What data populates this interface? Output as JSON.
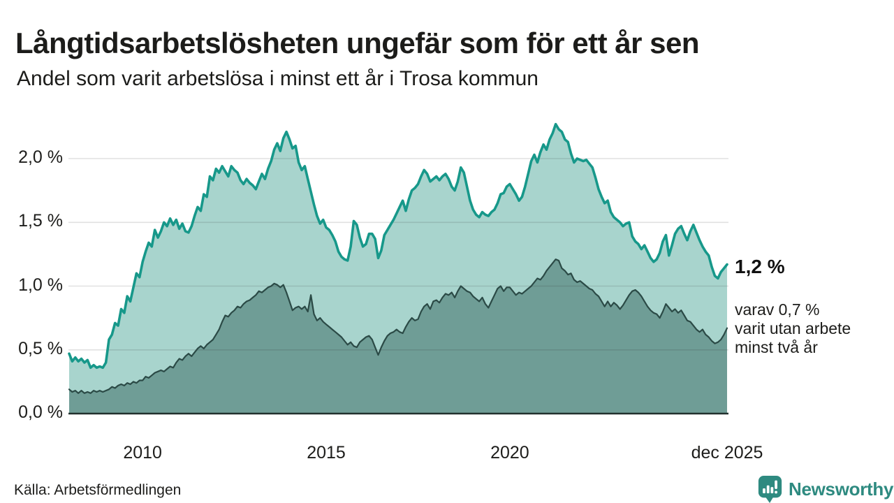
{
  "header": {
    "title": "Långtidsarbetslösheten ungefär som för ett år sen",
    "subtitle": "Andel som varit arbetslösa i minst ett år i Trosa kommun"
  },
  "chart_data": {
    "type": "area",
    "title": "Långtidsarbetslösheten ungefär som för ett år sen",
    "subtitle": "Andel som varit arbetslösa i minst ett år i Trosa kommun",
    "frequency": "monthly",
    "x_domain": [
      2008.0,
      2025.917
    ],
    "x_axis": {
      "ticks": [
        {
          "label": "2010",
          "t": 2010.0
        },
        {
          "label": "2015",
          "t": 2015.0
        },
        {
          "label": "2020",
          "t": 2020.0
        },
        {
          "label": "dec 2025",
          "t": 2025.917
        }
      ]
    },
    "y_axis": {
      "unit": "%",
      "ylim": [
        0,
        2.3
      ],
      "ticks": [
        {
          "label": "0,0 %",
          "value": 0
        },
        {
          "label": "0,5 %",
          "value": 0.5
        },
        {
          "label": "1,0 %",
          "value": 1.0
        },
        {
          "label": "1,5 %",
          "value": 1.5
        },
        {
          "label": "2,0 %",
          "value": 2.0
        }
      ],
      "grid": true
    },
    "series": [
      {
        "name": "Andel arbetslösa minst ett år",
        "color": "#17988a",
        "fill": "#a8d4cd",
        "values": [
          0.47,
          0.41,
          0.44,
          0.41,
          0.43,
          0.4,
          0.42,
          0.36,
          0.38,
          0.36,
          0.37,
          0.36,
          0.4,
          0.58,
          0.62,
          0.71,
          0.69,
          0.82,
          0.79,
          0.92,
          0.88,
          0.99,
          1.1,
          1.07,
          1.19,
          1.27,
          1.34,
          1.31,
          1.44,
          1.38,
          1.43,
          1.5,
          1.47,
          1.53,
          1.48,
          1.52,
          1.45,
          1.49,
          1.43,
          1.42,
          1.47,
          1.55,
          1.62,
          1.59,
          1.72,
          1.7,
          1.86,
          1.83,
          1.92,
          1.89,
          1.94,
          1.9,
          1.86,
          1.94,
          1.91,
          1.89,
          1.83,
          1.8,
          1.84,
          1.81,
          1.79,
          1.76,
          1.82,
          1.88,
          1.84,
          1.92,
          1.98,
          2.07,
          2.12,
          2.06,
          2.16,
          2.21,
          2.15,
          2.08,
          2.1,
          1.97,
          1.91,
          1.94,
          1.84,
          1.74,
          1.64,
          1.55,
          1.49,
          1.52,
          1.46,
          1.44,
          1.4,
          1.35,
          1.27,
          1.23,
          1.21,
          1.2,
          1.31,
          1.51,
          1.48,
          1.38,
          1.31,
          1.33,
          1.41,
          1.41,
          1.37,
          1.22,
          1.28,
          1.4,
          1.44,
          1.48,
          1.52,
          1.57,
          1.62,
          1.67,
          1.59,
          1.68,
          1.75,
          1.77,
          1.8,
          1.86,
          1.91,
          1.88,
          1.82,
          1.84,
          1.86,
          1.83,
          1.86,
          1.88,
          1.84,
          1.78,
          1.75,
          1.82,
          1.93,
          1.89,
          1.78,
          1.67,
          1.6,
          1.56,
          1.54,
          1.58,
          1.56,
          1.55,
          1.58,
          1.6,
          1.65,
          1.72,
          1.73,
          1.78,
          1.8,
          1.76,
          1.72,
          1.67,
          1.7,
          1.78,
          1.88,
          1.98,
          2.03,
          1.97,
          2.05,
          2.11,
          2.07,
          2.15,
          2.2,
          2.27,
          2.23,
          2.21,
          2.15,
          2.13,
          2.04,
          1.97,
          2.0,
          1.99,
          1.98,
          1.99,
          1.96,
          1.93,
          1.85,
          1.76,
          1.7,
          1.65,
          1.67,
          1.58,
          1.54,
          1.52,
          1.5,
          1.47,
          1.49,
          1.5,
          1.39,
          1.35,
          1.33,
          1.29,
          1.32,
          1.27,
          1.22,
          1.19,
          1.21,
          1.26,
          1.35,
          1.4,
          1.24,
          1.32,
          1.41,
          1.45,
          1.47,
          1.41,
          1.36,
          1.43,
          1.48,
          1.42,
          1.36,
          1.31,
          1.27,
          1.24,
          1.15,
          1.08,
          1.06,
          1.11,
          1.14,
          1.17
        ]
      },
      {
        "name": "Andel arbetslösa minst två år",
        "color": "#2b4a46",
        "fill": "#6f9d96",
        "values": [
          0.19,
          0.17,
          0.18,
          0.16,
          0.18,
          0.16,
          0.17,
          0.16,
          0.18,
          0.17,
          0.18,
          0.17,
          0.18,
          0.19,
          0.21,
          0.2,
          0.22,
          0.23,
          0.22,
          0.24,
          0.23,
          0.25,
          0.24,
          0.26,
          0.26,
          0.29,
          0.28,
          0.3,
          0.32,
          0.33,
          0.34,
          0.33,
          0.35,
          0.37,
          0.36,
          0.4,
          0.43,
          0.42,
          0.45,
          0.47,
          0.45,
          0.48,
          0.51,
          0.53,
          0.51,
          0.54,
          0.56,
          0.58,
          0.62,
          0.66,
          0.72,
          0.77,
          0.76,
          0.79,
          0.81,
          0.84,
          0.83,
          0.86,
          0.88,
          0.89,
          0.91,
          0.93,
          0.96,
          0.95,
          0.97,
          0.99,
          1.0,
          1.02,
          1.01,
          0.99,
          1.01,
          0.95,
          0.88,
          0.81,
          0.83,
          0.84,
          0.82,
          0.84,
          0.8,
          0.93,
          0.78,
          0.73,
          0.75,
          0.72,
          0.7,
          0.68,
          0.66,
          0.64,
          0.62,
          0.6,
          0.57,
          0.54,
          0.56,
          0.53,
          0.52,
          0.56,
          0.58,
          0.6,
          0.61,
          0.58,
          0.52,
          0.46,
          0.52,
          0.57,
          0.61,
          0.63,
          0.64,
          0.66,
          0.64,
          0.63,
          0.68,
          0.72,
          0.75,
          0.73,
          0.74,
          0.8,
          0.84,
          0.86,
          0.82,
          0.88,
          0.89,
          0.87,
          0.91,
          0.94,
          0.93,
          0.95,
          0.91,
          0.96,
          1.0,
          0.98,
          0.96,
          0.95,
          0.92,
          0.9,
          0.88,
          0.91,
          0.86,
          0.83,
          0.88,
          0.93,
          0.98,
          1.0,
          0.96,
          0.99,
          0.99,
          0.96,
          0.93,
          0.95,
          0.94,
          0.96,
          0.98,
          1.0,
          1.03,
          1.06,
          1.05,
          1.08,
          1.12,
          1.15,
          1.18,
          1.21,
          1.2,
          1.14,
          1.12,
          1.09,
          1.1,
          1.05,
          1.03,
          1.04,
          1.02,
          1.0,
          0.98,
          0.97,
          0.94,
          0.92,
          0.88,
          0.84,
          0.88,
          0.84,
          0.87,
          0.85,
          0.82,
          0.85,
          0.89,
          0.93,
          0.96,
          0.97,
          0.95,
          0.92,
          0.88,
          0.84,
          0.81,
          0.79,
          0.78,
          0.75,
          0.8,
          0.86,
          0.83,
          0.8,
          0.82,
          0.79,
          0.81,
          0.77,
          0.73,
          0.72,
          0.69,
          0.66,
          0.64,
          0.66,
          0.62,
          0.6,
          0.57,
          0.55,
          0.56,
          0.58,
          0.62,
          0.67
        ]
      }
    ],
    "end_labels": {
      "primary": "1,2 %",
      "secondary_lines": [
        "varav 0,7 %",
        "varit utan arbete",
        "minst två år"
      ]
    }
  },
  "footer": {
    "source": "Källa: Arbetsförmedlingen",
    "brand": "Newsworthy",
    "brand_color": "#2e8a80"
  }
}
